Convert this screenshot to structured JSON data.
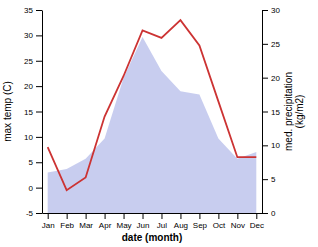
{
  "chart_data": {
    "type": "line",
    "xlabel": "date (month)",
    "ylabel": "max temp (C)",
    "y2label": "med. precipitation\n(kg/m2)",
    "categories": [
      "Jan",
      "Feb",
      "Mar",
      "Apr",
      "May",
      "Jun",
      "Jul",
      "Aug",
      "Sep",
      "Oct",
      "Nov",
      "Dec"
    ],
    "series": [
      {
        "type": "area",
        "axis": "y2",
        "color": "#b0b8e8",
        "values": [
          6.0,
          6.5,
          8.0,
          11.0,
          20.0,
          26.0,
          21.0,
          18.0,
          17.5,
          11.0,
          8.0,
          9.0
        ]
      },
      {
        "type": "line",
        "color": "#cc3333",
        "values": [
          8.0,
          -0.5,
          2.0,
          14.0,
          22.0,
          31.0,
          29.5,
          33.0,
          28.0,
          17.0,
          6.0,
          6.0
        ]
      }
    ],
    "ylim": [
      -5,
      35
    ],
    "yticks": [
      -5,
      0,
      5,
      10,
      15,
      20,
      25,
      30,
      35
    ],
    "y2lim": [
      0,
      30
    ],
    "y2ticks": [
      0,
      5,
      10,
      15,
      20,
      25,
      30
    ],
    "grid": false
  }
}
